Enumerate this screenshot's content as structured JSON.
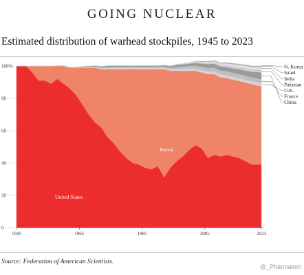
{
  "header": {
    "title": "GOING NUCLEAR"
  },
  "source": "Source: Federation of American Scientists.",
  "watermark": "@_Pharmakon",
  "chart_data": {
    "type": "area",
    "stacking": "percent",
    "title": "Estimated distribution of warhead stockpiles, 1945 to 2023",
    "xlabel": "",
    "ylabel": "",
    "xlim": [
      1945,
      2023
    ],
    "ylim": [
      0,
      100
    ],
    "x_ticks": [
      1945,
      1965,
      1985,
      2005,
      2023
    ],
    "x_tick_labels": [
      "1945",
      "1965",
      "1985",
      "2005",
      "2023"
    ],
    "y_ticks": [
      0,
      20,
      40,
      60,
      80,
      100
    ],
    "y_tick_labels": [
      "0",
      "20",
      "40",
      "60",
      "80",
      "100%"
    ],
    "legend_position": "right",
    "legend": [
      "N. Korea",
      "Israel",
      "India",
      "Pakistan",
      "U.K.",
      "France",
      "China"
    ],
    "area_labels": {
      "us": "United States",
      "russia": "Russia"
    },
    "x": [
      1945,
      1948,
      1950,
      1952,
      1954,
      1956,
      1958,
      1960,
      1962,
      1964,
      1966,
      1968,
      1970,
      1972,
      1974,
      1976,
      1978,
      1980,
      1982,
      1984,
      1986,
      1988,
      1990,
      1992,
      1994,
      1996,
      1998,
      2000,
      2002,
      2004,
      2006,
      2008,
      2010,
      2012,
      2014,
      2016,
      2018,
      2020,
      2023
    ],
    "series": [
      {
        "name": "United States",
        "color": "#ec2d2d",
        "values": [
          100,
          100,
          96,
          91,
          91,
          89,
          92,
          89,
          86,
          82,
          76,
          70,
          65,
          62,
          56,
          52,
          47,
          43,
          40,
          39,
          37,
          36,
          38,
          31,
          37,
          41,
          44,
          48,
          51,
          49,
          43,
          45,
          44,
          45,
          44,
          43,
          41,
          39,
          39
        ]
      },
      {
        "name": "Russia",
        "color": "#f08468",
        "values": [
          0,
          0,
          4,
          9,
          9,
          11,
          8,
          11,
          13,
          17,
          23,
          29,
          34,
          36,
          42,
          46,
          51,
          55,
          58,
          59,
          61,
          62,
          60,
          67,
          60,
          56,
          53,
          49,
          46,
          47,
          52,
          50,
          49,
          47.5,
          47.5,
          47.7,
          48.7,
          49.7,
          48.4
        ]
      },
      {
        "name": "U.K.",
        "color": "#d4d4d4",
        "values": [
          0,
          0,
          0,
          0,
          0,
          0,
          0.2,
          0.3,
          0.4,
          0.5,
          0.5,
          0.6,
          0.7,
          0.8,
          0.9,
          0.9,
          0.9,
          0.9,
          0.9,
          0.9,
          0.8,
          0.8,
          0.8,
          0.8,
          1.0,
          1.2,
          1.3,
          1.4,
          1.5,
          1.6,
          1.7,
          1.7,
          1.8,
          1.8,
          1.8,
          1.8,
          1.8,
          1.8,
          1.8
        ]
      },
      {
        "name": "France",
        "color": "#bfbfbf",
        "values": [
          0,
          0,
          0,
          0,
          0,
          0,
          0,
          0,
          0,
          0,
          0,
          0,
          0.1,
          0.2,
          0.4,
          0.6,
          0.6,
          0.6,
          0.6,
          0.7,
          0.7,
          0.8,
          0.9,
          0.9,
          1.0,
          1.2,
          1.4,
          1.6,
          1.7,
          2.0,
          2.3,
          2.3,
          2.4,
          2.5,
          2.5,
          2.5,
          2.5,
          2.5,
          2.5
        ]
      },
      {
        "name": "China",
        "color": "#9b9b9b",
        "values": [
          0,
          0,
          0,
          0,
          0,
          0,
          0,
          0,
          0,
          0,
          0.3,
          0.4,
          0.5,
          0.8,
          0.9,
          0.8,
          0.8,
          0.8,
          0.7,
          0.7,
          0.8,
          0.7,
          0.6,
          0.8,
          0.9,
          1.2,
          1.3,
          1.4,
          1.7,
          1.9,
          2.2,
          2.4,
          2.5,
          2.5,
          2.7,
          2.9,
          3.1,
          3.4,
          4.3
        ]
      },
      {
        "name": "Pakistan",
        "color": "#cfcfcf",
        "values": [
          0,
          0,
          0,
          0,
          0,
          0,
          0,
          0,
          0,
          0,
          0,
          0,
          0,
          0,
          0,
          0,
          0,
          0,
          0,
          0,
          0,
          0,
          0,
          0,
          0,
          0.1,
          0.1,
          0.2,
          0.4,
          0.6,
          0.8,
          0.9,
          1.1,
          1.3,
          1.4,
          1.5,
          1.6,
          1.6,
          1.7
        ]
      },
      {
        "name": "India",
        "color": "#e2e2e2",
        "values": [
          0,
          0,
          0,
          0,
          0,
          0,
          0,
          0,
          0,
          0,
          0,
          0,
          0,
          0,
          0,
          0,
          0,
          0,
          0,
          0,
          0,
          0,
          0,
          0,
          0,
          0.1,
          0.1,
          0.2,
          0.4,
          0.5,
          0.6,
          0.7,
          0.8,
          1.0,
          1.2,
          1.3,
          1.4,
          1.5,
          1.6
        ]
      },
      {
        "name": "Israel",
        "color": "#a9a9a9",
        "values": [
          0,
          0,
          0,
          0,
          0,
          0,
          0,
          0,
          0,
          0,
          0,
          0,
          0,
          0,
          0,
          0,
          0,
          0,
          0,
          0,
          0,
          0,
          0,
          0.2,
          0.3,
          0.3,
          0.3,
          0.3,
          0.3,
          0.4,
          0.4,
          0.5,
          0.5,
          0.6,
          0.6,
          0.6,
          0.6,
          0.6,
          0.7
        ]
      },
      {
        "name": "N. Korea",
        "color": "#eeeeee",
        "values": [
          0,
          0,
          0,
          0,
          0,
          0,
          0,
          0,
          0,
          0,
          0,
          0,
          0,
          0,
          0,
          0,
          0,
          0,
          0,
          0,
          0,
          0,
          0,
          0,
          0,
          0,
          0,
          0,
          0,
          0,
          0,
          0,
          0,
          0,
          0,
          0,
          0.1,
          0.2,
          0.4
        ]
      }
    ]
  }
}
